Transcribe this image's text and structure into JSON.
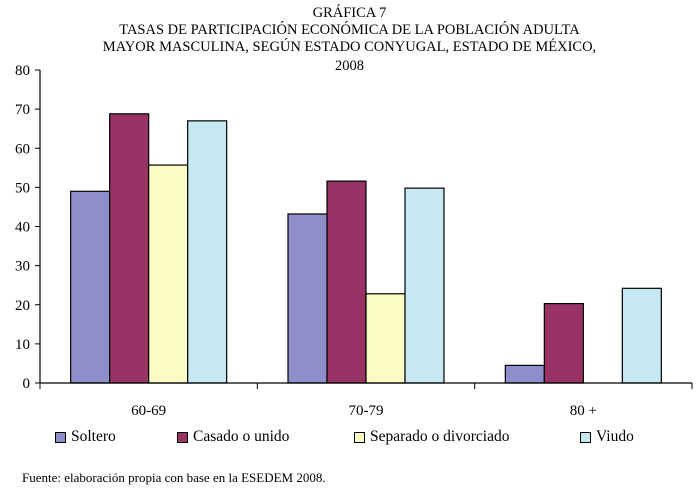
{
  "header": {
    "line1": "GRÁFICA 7",
    "line2": "TASAS DE PARTICIPACIÓN ECONÓMICA DE LA POBLACIÓN ADULTA",
    "line3": "MAYOR MASCULINA, SEGÚN ESTADO CONYUGAL, ESTADO DE MÉXICO,",
    "line4": "2008"
  },
  "colors": {
    "soltero": "#8e8fca",
    "casado": "#993366",
    "separado": "#fdfbc4",
    "viudo": "#c6e8f3"
  },
  "chart_data": {
    "type": "bar",
    "title": "TASAS DE PARTICIPACIÓN ECONÓMICA DE LA POBLACIÓN ADULTA MAYOR MASCULINA, SEGÚN ESTADO CONYUGAL, ESTADO DE MÉXICO, 2008",
    "categories": [
      "60-69",
      "70-79",
      "80 +"
    ],
    "series": [
      {
        "name": "Soltero",
        "values": [
          49,
          43.2,
          4.5
        ]
      },
      {
        "name": "Casado o unido",
        "values": [
          68.8,
          51.6,
          20.3
        ]
      },
      {
        "name": "Separado o divorciado",
        "values": [
          55.7,
          22.8,
          0
        ]
      },
      {
        "name": "Viudo",
        "values": [
          67,
          49.8,
          24.2
        ]
      }
    ],
    "ylim": [
      0,
      80
    ],
    "yticks": [
      "0",
      "10",
      "20",
      "30",
      "40",
      "50",
      "60",
      "70",
      "80"
    ],
    "xlabel": "",
    "ylabel": "",
    "legend_position": "bottom"
  },
  "footer": {
    "source": "Fuente: elaboración propia con base en la ESEDEM 2008."
  }
}
